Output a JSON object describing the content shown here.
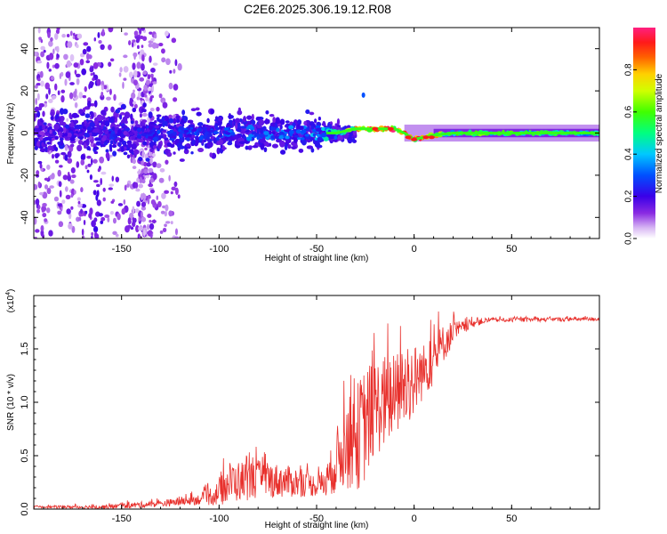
{
  "title": "C2E6.2025.306.19.12.R08",
  "chart_data": [
    {
      "type": "heatmap",
      "name": "spectrogram",
      "xlabel": "Height of straight line (km)",
      "ylabel": "Frequency (Hz)",
      "xlim": [
        -195,
        95
      ],
      "ylim": [
        -50,
        50
      ],
      "x_ticks": [
        -150,
        -100,
        -50,
        0,
        50
      ],
      "y_ticks": [
        -40,
        -20,
        0,
        20,
        40
      ],
      "colorbar": {
        "label": "Normalized spectral amplitude",
        "range": [
          0,
          1
        ],
        "ticks": [
          0.0,
          0.2,
          0.4,
          0.6,
          0.8
        ],
        "tick_labels": [
          "0.0",
          "0.2",
          "0.4",
          "0.6",
          "0.8"
        ]
      },
      "ridge": {
        "x": [
          -195,
          -150,
          -100,
          -60,
          -40,
          -30,
          -20,
          -10,
          -5,
          0,
          5,
          10,
          20,
          40,
          60,
          95
        ],
        "freq_hz": [
          0,
          0,
          0,
          0,
          0,
          2,
          2,
          2,
          0,
          -3,
          -2,
          -1,
          0,
          0,
          0,
          0
        ],
        "amplitude": [
          0.2,
          0.25,
          0.3,
          0.35,
          0.45,
          0.8,
          0.9,
          0.95,
          0.9,
          0.95,
          0.95,
          0.8,
          0.6,
          0.6,
          0.58,
          0.55
        ]
      }
    },
    {
      "type": "line",
      "name": "snr",
      "xlabel": "Height of straight line (km)",
      "ylabel": "SNR (10 * v/v)",
      "y_multiplier": "(x10",
      "y_multiplier_exp": "4",
      "y_multiplier_close": ")",
      "xlim": [
        -195,
        95
      ],
      "ylim": [
        0,
        2.0
      ],
      "x_ticks": [
        -150,
        -100,
        -50,
        0,
        50
      ],
      "y_ticks": [
        0.0,
        0.5,
        1.0,
        1.5
      ],
      "y_tick_labels": [
        "0.0",
        "0.5",
        "1.0",
        "1.5"
      ],
      "color": "#e8302c",
      "envelope": {
        "x": [
          -195,
          -160,
          -140,
          -130,
          -120,
          -110,
          -100,
          -95,
          -80,
          -60,
          -50,
          -45,
          -40,
          -35,
          -30,
          -25,
          -20,
          -15,
          -10,
          -5,
          0,
          5,
          10,
          15,
          20,
          25,
          30,
          35,
          40,
          95
        ],
        "mean": [
          0.02,
          0.02,
          0.04,
          0.05,
          0.07,
          0.09,
          0.15,
          0.25,
          0.28,
          0.25,
          0.22,
          0.25,
          0.45,
          0.6,
          0.65,
          0.8,
          0.95,
          1.0,
          1.05,
          1.15,
          1.2,
          1.3,
          1.4,
          1.55,
          1.65,
          1.7,
          1.74,
          1.76,
          1.77,
          1.78
        ],
        "spread": [
          0.01,
          0.02,
          0.03,
          0.03,
          0.04,
          0.05,
          0.12,
          0.2,
          0.18,
          0.14,
          0.1,
          0.15,
          0.3,
          0.4,
          0.5,
          0.55,
          0.45,
          0.45,
          0.4,
          0.4,
          0.35,
          0.25,
          0.25,
          0.18,
          0.12,
          0.06,
          0.04,
          0.03,
          0.02,
          0.02
        ]
      }
    }
  ]
}
